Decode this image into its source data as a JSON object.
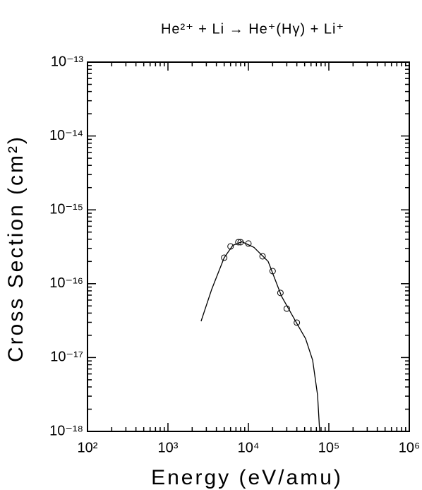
{
  "chart_data": {
    "type": "scatter",
    "title": "He²⁺ + Li → He⁺(Hγ) + Li⁺",
    "x_label": "Energy (eV/amu)",
    "y_label": "Cross Section (cm²)",
    "xscale": "log",
    "yscale": "log",
    "xlim": [
      100,
      1000000
    ],
    "ylim": [
      1e-18,
      1e-13
    ],
    "xticks": [
      {
        "value": 100,
        "label": "10²"
      },
      {
        "value": 1000,
        "label": "10³"
      },
      {
        "value": 10000,
        "label": "10⁴"
      },
      {
        "value": 100000,
        "label": "10⁵"
      },
      {
        "value": 1000000,
        "label": "10⁶"
      }
    ],
    "yticks": [
      {
        "value": 1e-18,
        "label": "10⁻¹⁸"
      },
      {
        "value": 1e-17,
        "label": "10⁻¹⁷"
      },
      {
        "value": 1e-16,
        "label": "10⁻¹⁶"
      },
      {
        "value": 1e-15,
        "label": "10⁻¹⁵"
      },
      {
        "value": 1e-14,
        "label": "10⁻¹⁴"
      },
      {
        "value": 1e-13,
        "label": "10⁻¹³"
      }
    ],
    "grid": false,
    "series": [
      {
        "style": "line",
        "color": "#000000",
        "x": [
          2580,
          3500,
          5000,
          6400,
          8300,
          11750,
          17600,
          25900,
          40000,
          51400,
          62900,
          72400,
          76900
        ],
        "values": [
          3.1e-17,
          8.4e-17,
          2.25e-16,
          3.3e-16,
          3.7e-16,
          3.1e-16,
          2e-16,
          6.7e-17,
          2.9e-17,
          1.8e-17,
          9.2e-18,
          3.1e-18,
          1e-18
        ]
      },
      {
        "style": "marker",
        "color": "#000000",
        "x": [
          5000,
          6000,
          7500,
          8000,
          10000,
          15000,
          20000,
          25000,
          30000,
          40000
        ],
        "values": [
          2.25e-16,
          3.2e-16,
          3.65e-16,
          3.65e-16,
          3.5e-16,
          2.35e-16,
          1.48e-16,
          7.5e-17,
          4.6e-17,
          2.97e-17
        ]
      }
    ]
  }
}
